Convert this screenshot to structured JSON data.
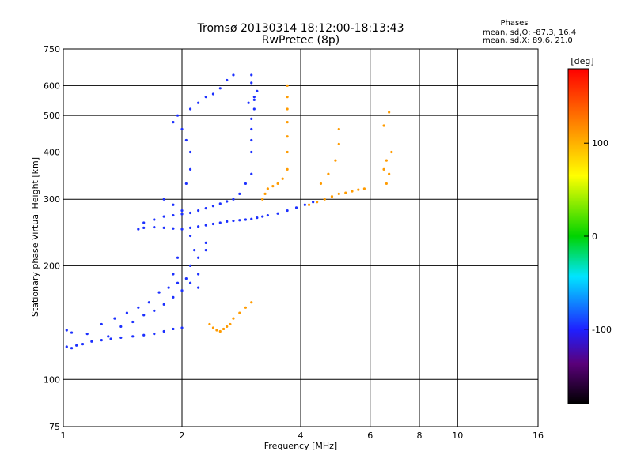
{
  "chart_data": {
    "type": "scatter",
    "title": "Tromsø 20130314 18:12:00-18:13:43",
    "subtitle": "RwPretec (8p)",
    "xlabel": "Frequency [MHz]",
    "ylabel": "Stationary phase Virtual Height [km]",
    "xscale": "log",
    "yscale": "log",
    "xlim": [
      1,
      16
    ],
    "ylim": [
      75,
      750
    ],
    "xticks": [
      1,
      2,
      4,
      6,
      8,
      10,
      16
    ],
    "yticks": [
      75,
      100,
      200,
      300,
      400,
      500,
      600,
      750
    ],
    "grid": true,
    "phases": {
      "header": "Phases",
      "o_line": "mean, sd,O: -87.3, 16.4",
      "x_line": "mean, sd,X:  89.6, 21.0"
    },
    "colorbar": {
      "title": "[deg]",
      "range": [
        -180,
        180
      ],
      "ticks": [
        100,
        0,
        -100
      ]
    },
    "series": [
      {
        "name": "O",
        "color_value": -95,
        "points": [
          [
            1.02,
            122
          ],
          [
            1.05,
            121
          ],
          [
            1.08,
            123
          ],
          [
            1.12,
            124
          ],
          [
            1.18,
            126
          ],
          [
            1.25,
            127
          ],
          [
            1.32,
            128
          ],
          [
            1.4,
            129
          ],
          [
            1.5,
            130
          ],
          [
            1.6,
            131
          ],
          [
            1.7,
            132
          ],
          [
            1.8,
            134
          ],
          [
            1.9,
            136
          ],
          [
            2.0,
            137
          ],
          [
            1.02,
            135
          ],
          [
            1.05,
            133
          ],
          [
            1.15,
            132
          ],
          [
            1.25,
            140
          ],
          [
            1.35,
            145
          ],
          [
            1.45,
            150
          ],
          [
            1.55,
            155
          ],
          [
            1.65,
            160
          ],
          [
            1.75,
            170
          ],
          [
            1.85,
            175
          ],
          [
            1.95,
            180
          ],
          [
            2.05,
            185
          ],
          [
            1.3,
            130
          ],
          [
            1.4,
            138
          ],
          [
            1.5,
            142
          ],
          [
            1.6,
            148
          ],
          [
            1.7,
            152
          ],
          [
            1.8,
            158
          ],
          [
            1.9,
            165
          ],
          [
            2.0,
            172
          ],
          [
            2.1,
            180
          ],
          [
            2.1,
            200
          ],
          [
            2.15,
            220
          ],
          [
            2.1,
            240
          ],
          [
            1.55,
            250
          ],
          [
            1.6,
            252
          ],
          [
            1.7,
            253
          ],
          [
            1.8,
            252
          ],
          [
            1.9,
            251
          ],
          [
            2.0,
            250
          ],
          [
            2.1,
            252
          ],
          [
            2.2,
            254
          ],
          [
            2.3,
            256
          ],
          [
            2.4,
            258
          ],
          [
            2.5,
            260
          ],
          [
            2.6,
            262
          ],
          [
            2.7,
            263
          ],
          [
            2.8,
            264
          ],
          [
            2.9,
            265
          ],
          [
            3.0,
            266
          ],
          [
            3.1,
            268
          ],
          [
            3.2,
            270
          ],
          [
            3.3,
            272
          ],
          [
            3.5,
            275
          ],
          [
            3.7,
            280
          ],
          [
            3.9,
            285
          ],
          [
            4.1,
            290
          ],
          [
            4.3,
            295
          ],
          [
            1.6,
            260
          ],
          [
            1.7,
            265
          ],
          [
            1.8,
            270
          ],
          [
            1.9,
            272
          ],
          [
            2.0,
            274
          ],
          [
            2.1,
            276
          ],
          [
            2.2,
            280
          ],
          [
            2.3,
            284
          ],
          [
            2.4,
            288
          ],
          [
            2.5,
            292
          ],
          [
            2.6,
            296
          ],
          [
            2.7,
            300
          ],
          [
            2.8,
            310
          ],
          [
            2.9,
            330
          ],
          [
            3.0,
            350
          ],
          [
            1.8,
            300
          ],
          [
            1.9,
            290
          ],
          [
            2.0,
            280
          ],
          [
            2.05,
            330
          ],
          [
            2.1,
            360
          ],
          [
            2.1,
            400
          ],
          [
            2.05,
            430
          ],
          [
            2.0,
            460
          ],
          [
            1.9,
            480
          ],
          [
            1.95,
            500
          ],
          [
            2.1,
            520
          ],
          [
            2.2,
            540
          ],
          [
            2.3,
            560
          ],
          [
            2.4,
            570
          ],
          [
            2.5,
            590
          ],
          [
            2.6,
            620
          ],
          [
            2.7,
            640
          ],
          [
            3.0,
            400
          ],
          [
            3.0,
            430
          ],
          [
            3.0,
            460
          ],
          [
            3.0,
            490
          ],
          [
            3.05,
            520
          ],
          [
            3.05,
            550
          ],
          [
            3.1,
            580
          ],
          [
            3.0,
            610
          ],
          [
            3.0,
            640
          ],
          [
            3.05,
            560
          ],
          [
            2.95,
            540
          ],
          [
            2.2,
            190
          ],
          [
            2.2,
            175
          ],
          [
            2.3,
            230
          ],
          [
            2.3,
            220
          ],
          [
            2.2,
            210
          ],
          [
            1.9,
            190
          ],
          [
            1.95,
            210
          ]
        ]
      },
      {
        "name": "X",
        "color_value": 110,
        "points": [
          [
            2.35,
            140
          ],
          [
            2.4,
            137
          ],
          [
            2.45,
            135
          ],
          [
            2.5,
            134
          ],
          [
            2.55,
            136
          ],
          [
            2.6,
            138
          ],
          [
            2.65,
            140
          ],
          [
            2.7,
            145
          ],
          [
            2.8,
            150
          ],
          [
            2.9,
            155
          ],
          [
            3.0,
            160
          ],
          [
            3.2,
            300
          ],
          [
            3.25,
            310
          ],
          [
            3.3,
            320
          ],
          [
            3.4,
            325
          ],
          [
            3.5,
            330
          ],
          [
            3.6,
            340
          ],
          [
            3.7,
            360
          ],
          [
            3.7,
            400
          ],
          [
            3.7,
            440
          ],
          [
            3.7,
            480
          ],
          [
            3.7,
            520
          ],
          [
            3.7,
            560
          ],
          [
            3.7,
            600
          ],
          [
            4.2,
            290
          ],
          [
            4.4,
            295
          ],
          [
            4.6,
            300
          ],
          [
            4.8,
            305
          ],
          [
            5.0,
            310
          ],
          [
            5.2,
            312
          ],
          [
            5.4,
            315
          ],
          [
            5.6,
            318
          ],
          [
            5.8,
            320
          ],
          [
            4.5,
            330
          ],
          [
            4.7,
            350
          ],
          [
            4.9,
            380
          ],
          [
            5.0,
            420
          ],
          [
            5.0,
            460
          ],
          [
            6.5,
            360
          ],
          [
            6.6,
            380
          ],
          [
            6.7,
            350
          ],
          [
            6.8,
            400
          ],
          [
            6.6,
            330
          ],
          [
            6.5,
            470
          ],
          [
            6.7,
            510
          ]
        ]
      }
    ]
  }
}
